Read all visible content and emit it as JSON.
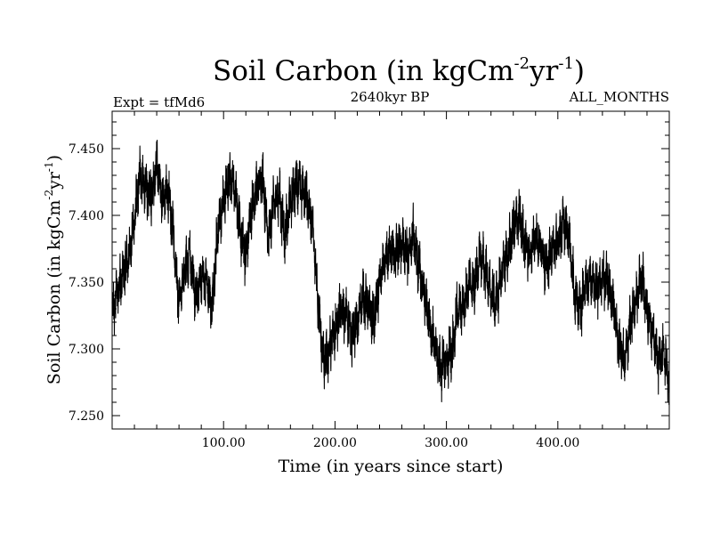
{
  "header": {
    "title_text": "Soil Carbon (in kgCm",
    "title_sup1": "-2",
    "title_mid": "yr",
    "title_sup2": "-1",
    "title_close": ")",
    "experiment": "Expt = tfMd6",
    "period": "2640kyr BP",
    "months": "ALL_MONTHS"
  },
  "chart_data": {
    "type": "line",
    "title": "Soil Carbon (in kgCm-2yr-1)",
    "xlabel": "Time (in years since start)",
    "ylabel": "Soil Carbon (in kgCm-2yr-1)",
    "xlim": [
      0,
      500
    ],
    "ylim": [
      7.24,
      7.478
    ],
    "xticks": [
      100,
      200,
      300,
      400
    ],
    "xtick_labels": [
      "100.00",
      "200.00",
      "300.00",
      "400.00"
    ],
    "yticks": [
      7.25,
      7.3,
      7.35,
      7.4,
      7.45
    ],
    "ytick_labels": [
      "7.250",
      "7.300",
      "7.350",
      "7.400",
      "7.450"
    ],
    "series": [
      {
        "name": "Soil Carbon",
        "color": "#000000",
        "x": [
          0,
          5,
          10,
          15,
          20,
          25,
          30,
          35,
          40,
          45,
          50,
          55,
          60,
          65,
          70,
          75,
          80,
          85,
          90,
          95,
          100,
          105,
          110,
          115,
          120,
          125,
          130,
          135,
          140,
          145,
          150,
          155,
          160,
          165,
          170,
          175,
          180,
          185,
          190,
          195,
          200,
          205,
          210,
          215,
          220,
          225,
          230,
          235,
          240,
          245,
          250,
          255,
          260,
          265,
          270,
          275,
          280,
          285,
          290,
          295,
          300,
          305,
          310,
          315,
          320,
          325,
          330,
          335,
          340,
          345,
          350,
          355,
          360,
          365,
          370,
          375,
          380,
          385,
          390,
          395,
          400,
          405,
          410,
          415,
          420,
          425,
          430,
          435,
          440,
          445,
          450,
          455,
          460,
          465,
          470,
          475,
          480,
          485,
          490,
          495,
          500
        ],
        "values": [
          7.325,
          7.345,
          7.355,
          7.37,
          7.395,
          7.43,
          7.42,
          7.415,
          7.44,
          7.41,
          7.42,
          7.385,
          7.33,
          7.36,
          7.37,
          7.34,
          7.355,
          7.35,
          7.33,
          7.39,
          7.41,
          7.43,
          7.42,
          7.39,
          7.37,
          7.405,
          7.42,
          7.43,
          7.38,
          7.41,
          7.415,
          7.385,
          7.41,
          7.425,
          7.42,
          7.415,
          7.39,
          7.33,
          7.29,
          7.3,
          7.315,
          7.33,
          7.325,
          7.31,
          7.32,
          7.34,
          7.33,
          7.32,
          7.35,
          7.365,
          7.375,
          7.37,
          7.38,
          7.37,
          7.385,
          7.36,
          7.34,
          7.32,
          7.3,
          7.285,
          7.29,
          7.3,
          7.33,
          7.33,
          7.35,
          7.345,
          7.37,
          7.36,
          7.34,
          7.335,
          7.36,
          7.37,
          7.39,
          7.4,
          7.38,
          7.37,
          7.385,
          7.375,
          7.36,
          7.375,
          7.38,
          7.395,
          7.385,
          7.34,
          7.33,
          7.35,
          7.355,
          7.345,
          7.355,
          7.35,
          7.33,
          7.3,
          7.29,
          7.32,
          7.335,
          7.355,
          7.33,
          7.31,
          7.29,
          7.3,
          7.275
        ]
      }
    ]
  }
}
